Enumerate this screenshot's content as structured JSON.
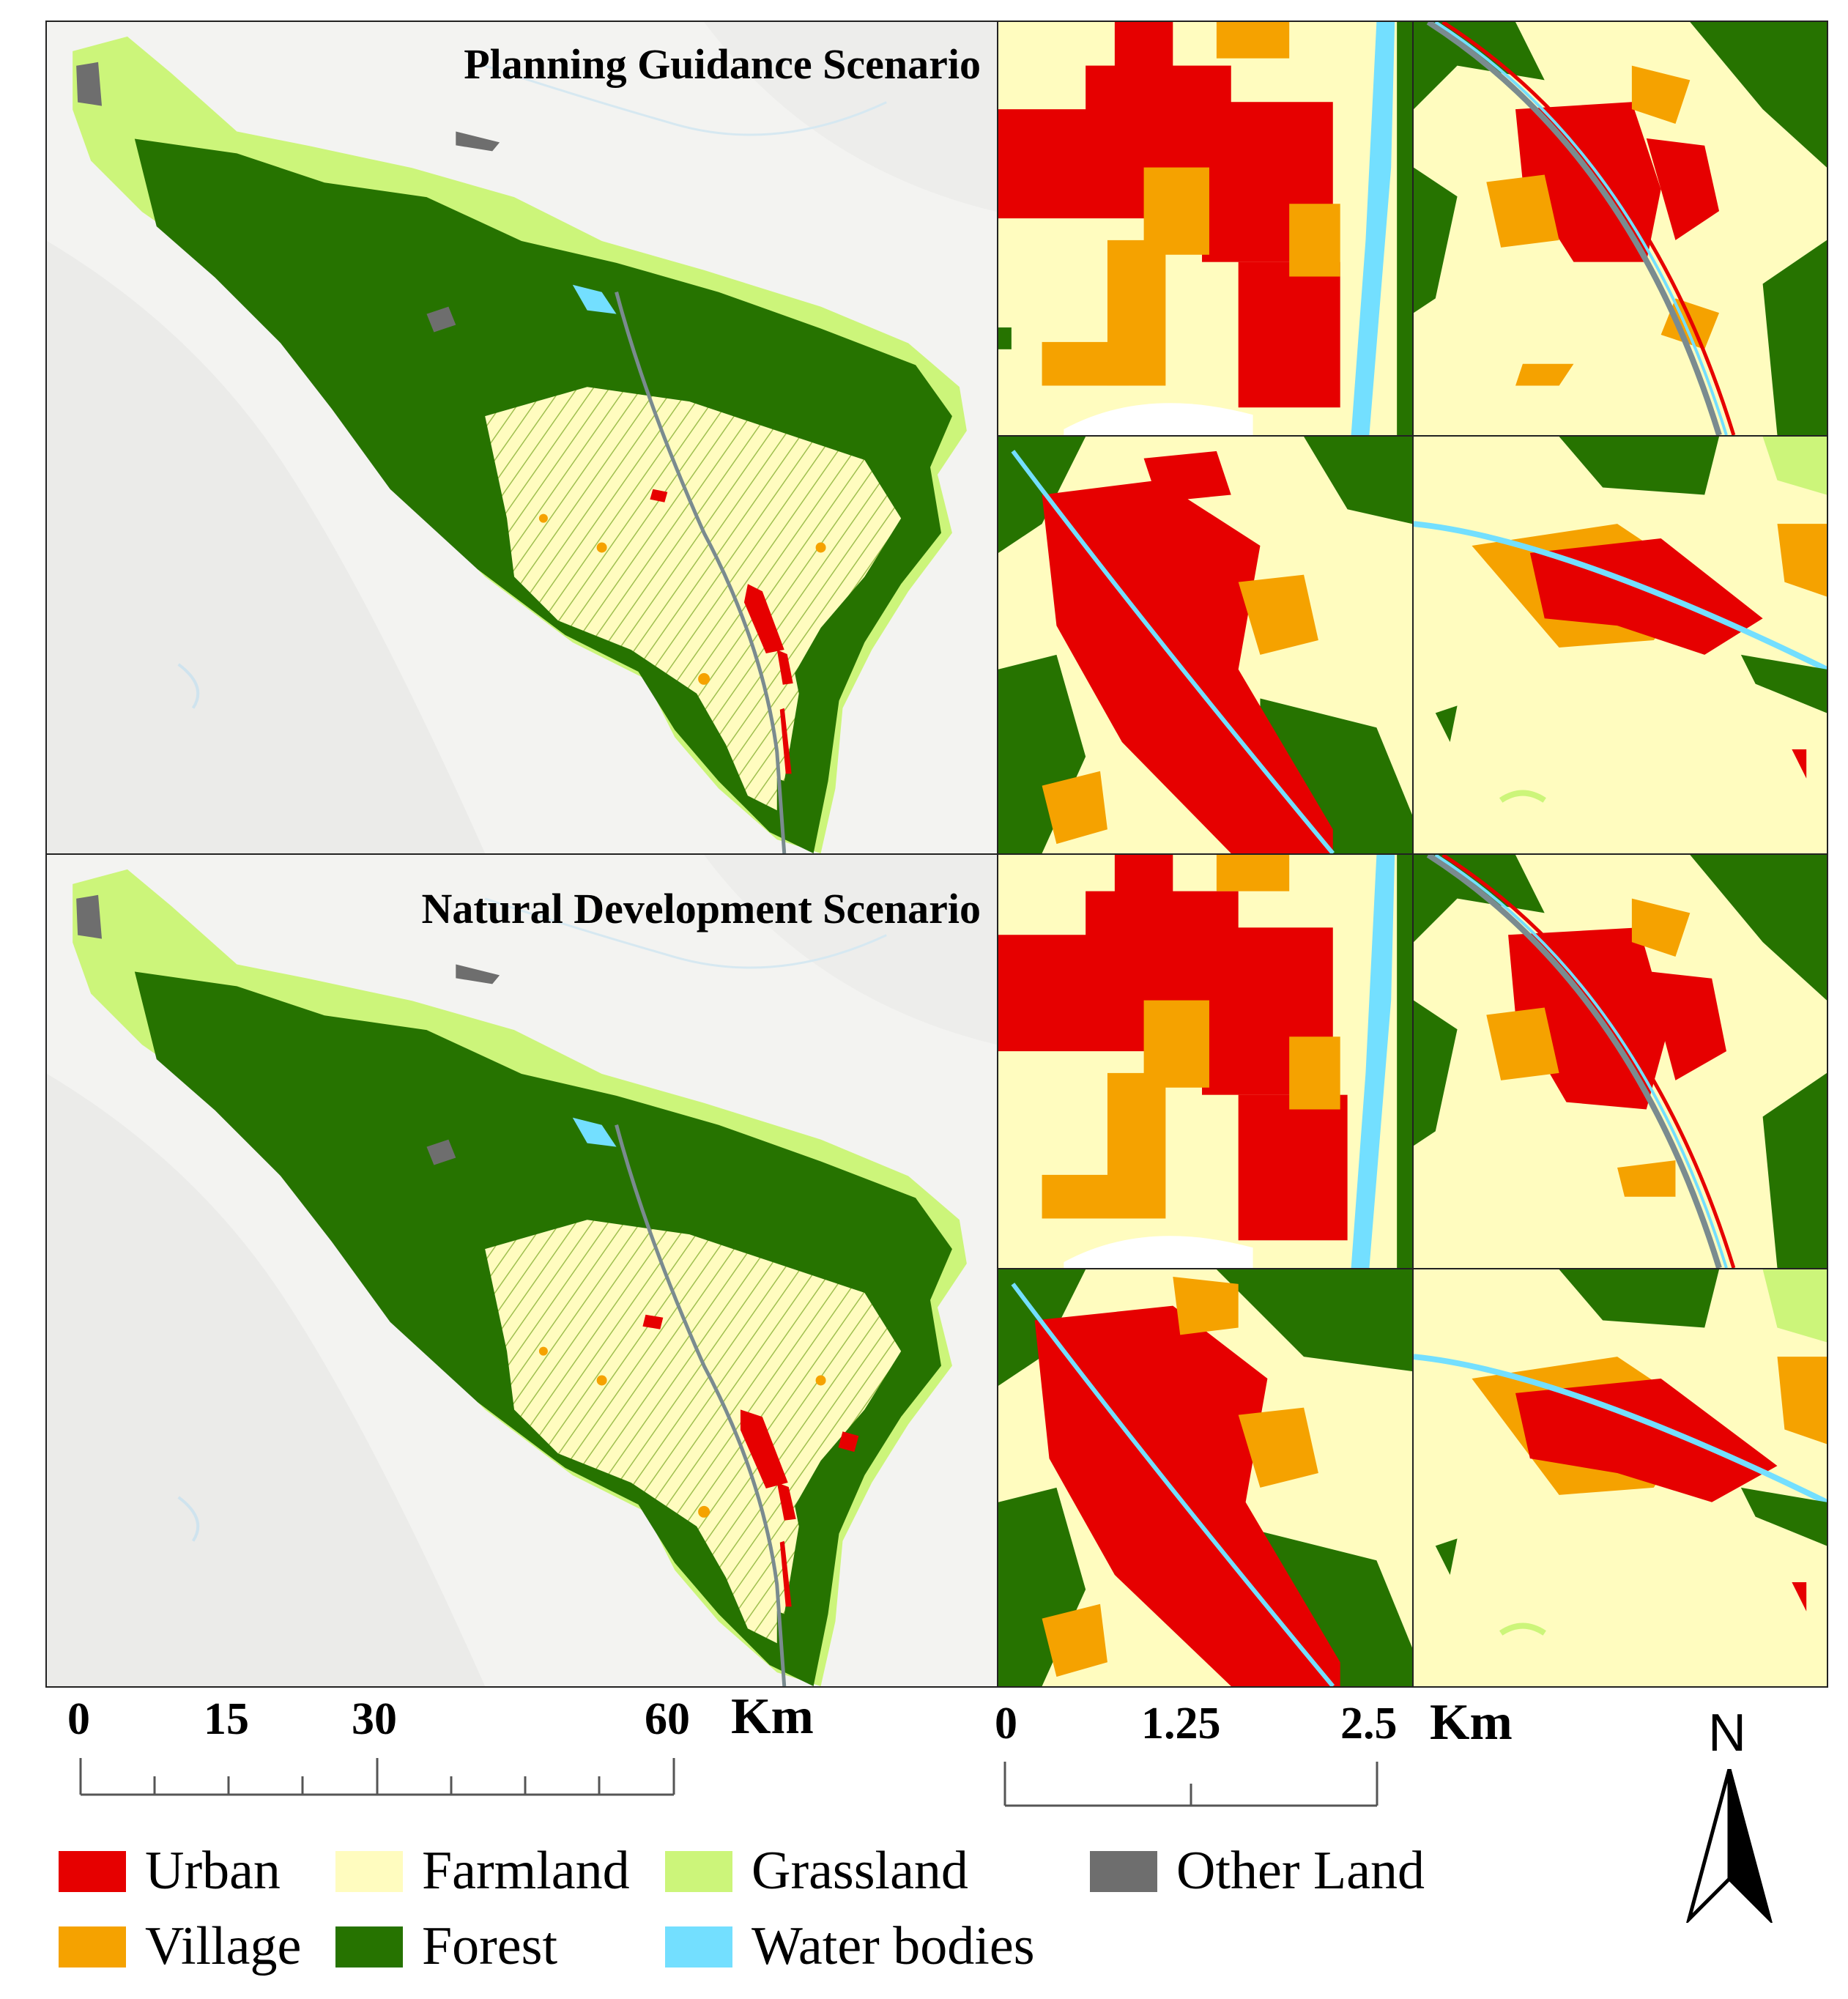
{
  "scenarios": {
    "top": "Planning Guidance Scenario",
    "bottom": "Natural Development Scenario"
  },
  "scale_left": {
    "ticks": [
      "0",
      "15",
      "30",
      "60"
    ],
    "unit": "Km"
  },
  "scale_right": {
    "ticks": [
      "0",
      "1.25",
      "2.5"
    ],
    "unit": "Km"
  },
  "north_arrow": {
    "label": "N",
    "icon": "north-arrow-icon"
  },
  "legend": [
    {
      "label": "Urban",
      "color": "#e60000"
    },
    {
      "label": "Farmland",
      "color": "#fffcbf"
    },
    {
      "label": "Grassland",
      "color": "#ccf57a"
    },
    {
      "label": "Other Land",
      "color": "#6e6e6e"
    },
    {
      "label": "Village",
      "color": "#f5a200"
    },
    {
      "label": "Forest",
      "color": "#267300"
    },
    {
      "label": "Water bodies",
      "color": "#73dfff"
    }
  ]
}
